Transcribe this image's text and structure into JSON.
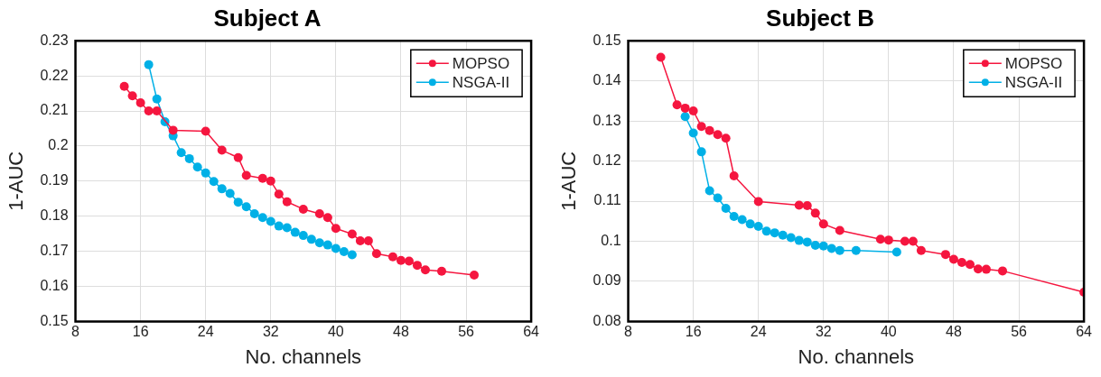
{
  "chart_data": [
    {
      "type": "line",
      "title": "Subject A",
      "xlabel": "No. channels",
      "ylabel": "1-AUC",
      "xlim": [
        8,
        64
      ],
      "xticks": [
        8,
        16,
        24,
        32,
        40,
        48,
        56,
        64
      ],
      "ylim": [
        0.15,
        0.23
      ],
      "yticks": [
        0.15,
        0.16,
        0.17,
        0.18,
        0.19,
        0.2,
        0.21,
        0.22,
        0.23
      ],
      "grid": true,
      "legend": "top right",
      "marker": "circle",
      "line_style": "solid",
      "series": [
        {
          "name": "MOPSO",
          "color": "#f5163f",
          "x": [
            14,
            15,
            16,
            17,
            18,
            20,
            24,
            26,
            28,
            29,
            31,
            32,
            33,
            34,
            36,
            38,
            39,
            40,
            42,
            43,
            44,
            45,
            47,
            48,
            49,
            50,
            51,
            53,
            57
          ],
          "values": [
            0.217,
            0.2143,
            0.2123,
            0.21,
            0.21,
            0.2045,
            0.2042,
            0.1988,
            0.1967,
            0.1916,
            0.1908,
            0.19,
            0.1863,
            0.1841,
            0.182,
            0.1807,
            0.1796,
            0.1765,
            0.1749,
            0.173,
            0.173,
            0.1693,
            0.1684,
            0.1674,
            0.1672,
            0.166,
            0.1647,
            0.1643,
            0.1632
          ]
        },
        {
          "name": "NSGA-II",
          "color": "#00b0e6",
          "x": [
            17,
            18,
            19,
            20,
            21,
            22,
            23,
            24,
            25,
            26,
            27,
            28,
            29,
            30,
            31,
            32,
            33,
            34,
            35,
            36,
            37,
            38,
            39,
            40,
            41,
            42
          ],
          "values": [
            0.2232,
            0.2134,
            0.2069,
            0.2029,
            0.1981,
            0.1964,
            0.194,
            0.1923,
            0.1899,
            0.1878,
            0.1865,
            0.184,
            0.1827,
            0.1807,
            0.1796,
            0.1785,
            0.1772,
            0.1767,
            0.1754,
            0.1745,
            0.1734,
            0.1724,
            0.1718,
            0.1708,
            0.1699,
            0.169
          ]
        }
      ]
    },
    {
      "type": "line",
      "title": "Subject B",
      "xlabel": "No. channels",
      "ylabel": "1-AUC",
      "xlim": [
        8,
        64
      ],
      "xticks": [
        8,
        16,
        24,
        32,
        40,
        48,
        56,
        64
      ],
      "ylim": [
        0.08,
        0.15
      ],
      "yticks": [
        0.08,
        0.09,
        0.1,
        0.11,
        0.12,
        0.13,
        0.14,
        0.15
      ],
      "grid": true,
      "legend": "top right",
      "marker": "circle",
      "line_style": "solid",
      "series": [
        {
          "name": "MOPSO",
          "color": "#f5163f",
          "x": [
            12,
            14,
            15,
            16,
            17,
            18,
            19,
            20,
            21,
            24,
            29,
            30,
            31,
            32,
            34,
            39,
            40,
            42,
            43,
            44,
            47,
            48,
            49,
            50,
            51,
            52,
            54,
            64
          ],
          "values": [
            0.1459,
            0.134,
            0.1332,
            0.1325,
            0.1286,
            0.1276,
            0.1266,
            0.1257,
            0.1163,
            0.1099,
            0.109,
            0.1089,
            0.107,
            0.1043,
            0.1027,
            0.1005,
            0.1003,
            0.1,
            0.1,
            0.0977,
            0.0967,
            0.0955,
            0.0947,
            0.0942,
            0.0931,
            0.093,
            0.0926,
            0.0873
          ]
        },
        {
          "name": "NSGA-II",
          "color": "#00b0e6",
          "x": [
            15,
            16,
            17,
            18,
            19,
            20,
            21,
            22,
            23,
            24,
            25,
            26,
            27,
            28,
            29,
            30,
            31,
            32,
            33,
            34,
            36,
            41
          ],
          "values": [
            0.1311,
            0.127,
            0.1223,
            0.1126,
            0.1108,
            0.1082,
            0.1062,
            0.1054,
            0.1043,
            0.1037,
            0.1025,
            0.1021,
            0.1015,
            0.1009,
            0.1002,
            0.0998,
            0.099,
            0.0988,
            0.0982,
            0.0977,
            0.0977,
            0.0973
          ]
        }
      ]
    }
  ]
}
